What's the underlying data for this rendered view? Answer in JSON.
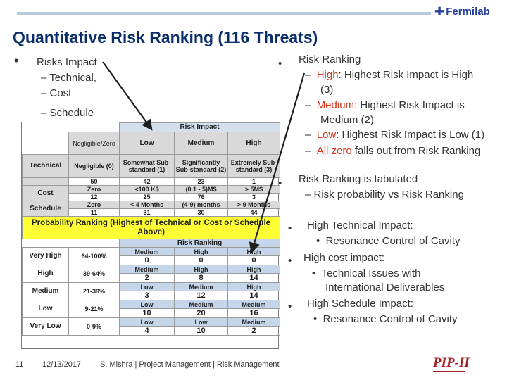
{
  "header": {
    "logo_text": "Fermilab",
    "logo_icon": "fermilab-logo-icon",
    "title": "Quantitative Risk Ranking (116 Threats)"
  },
  "left_bullets": {
    "main": "Risks Impact",
    "sub": [
      "– Technical,",
      "– Cost",
      "– Schedule"
    ]
  },
  "right_bullets": {
    "main": "Risk Ranking",
    "high_label": "High",
    "high_text": ": Highest Risk Impact is High",
    "high_cont": "(3)",
    "medium_label": "Medium",
    "medium_text": ": Highest Risk Impact is",
    "medium_cont": "Medium (2)",
    "low_label": "Low",
    "low_text": ": Highest Risk Impact is Low (1)",
    "zero_label": "All zero",
    "zero_text": " falls out from Risk Ranking",
    "tab_main": "Risk Ranking is tabulated",
    "tab_sub": "– Risk probability vs Risk Ranking",
    "tech_main": "High Technical Impact:",
    "tech_sub": "Resonance Control of Cavity",
    "cost_main": "High cost impact:",
    "cost_sub1": "Technical Issues with",
    "cost_sub2": "International Deliverables",
    "sched_main": "High Schedule Impact:",
    "sched_sub": "Resonance Control of Cavity"
  },
  "table": {
    "impact_header": "Risk Impact",
    "impact_cols": [
      "Negligible/Zero",
      "Low",
      "Medium",
      "High"
    ],
    "technical": {
      "label": "Technical",
      "cells": [
        "Negligible (0)",
        "Somewhat Sub-standard (1)",
        "Significantly Sub-standard (2)",
        "Extremely Sub-standard  (3)"
      ],
      "counts": [
        "50",
        "42",
        "23",
        "1"
      ]
    },
    "cost": {
      "label": "Cost",
      "cells": [
        "Zero",
        "<100 K$",
        "(0.1 - 5)M$",
        "> 5M$"
      ],
      "counts": [
        "12",
        "25",
        "76",
        "3"
      ]
    },
    "schedule": {
      "label": "Schedule",
      "cells": [
        "Zero",
        "< 4 Months",
        "(4-9) months",
        "> 9 Months"
      ],
      "counts": [
        "11",
        "31",
        "30",
        "44"
      ]
    },
    "probability_header": "Probability Ranking (Highest of Technical or Cost or Schedule Above)",
    "ranking_header": "Risk Ranking",
    "rows": [
      {
        "label": "Very High",
        "pct": "64-100%",
        "cells": [
          {
            "r": "Medium",
            "n": "0"
          },
          {
            "r": "High",
            "n": "0"
          },
          {
            "r": "High",
            "n": "0"
          }
        ]
      },
      {
        "label": "High",
        "pct": "39-64%",
        "cells": [
          {
            "r": "Medium",
            "n": "2"
          },
          {
            "r": "High",
            "n": "8"
          },
          {
            "r": "High",
            "n": "14"
          }
        ]
      },
      {
        "label": "Medium",
        "pct": "21-39%",
        "cells": [
          {
            "r": "Low",
            "n": "3"
          },
          {
            "r": "Medium",
            "n": "12"
          },
          {
            "r": "High",
            "n": "14"
          }
        ]
      },
      {
        "label": "Low",
        "pct": "9-21%",
        "cells": [
          {
            "r": "Low",
            "n": "10"
          },
          {
            "r": "Medium",
            "n": "20"
          },
          {
            "r": "Medium",
            "n": "16"
          }
        ]
      },
      {
        "label": "Very Low",
        "pct": "0-9%",
        "cells": [
          {
            "r": "Low",
            "n": "4"
          },
          {
            "r": "Low",
            "n": "10"
          },
          {
            "r": "Medium",
            "n": "2"
          }
        ]
      }
    ]
  },
  "footer": {
    "page": "11",
    "date": "12/13/2017",
    "credit": "S. Mishra | Project Management | Risk Management",
    "pip_logo": "PIP-II"
  },
  "colors": {
    "title": "#0b2f6b",
    "highlight_red": "#d6331a",
    "probability_yellow": "#ffff33",
    "header_blue": "#d4e0ee",
    "pip_red": "#a41f23"
  }
}
